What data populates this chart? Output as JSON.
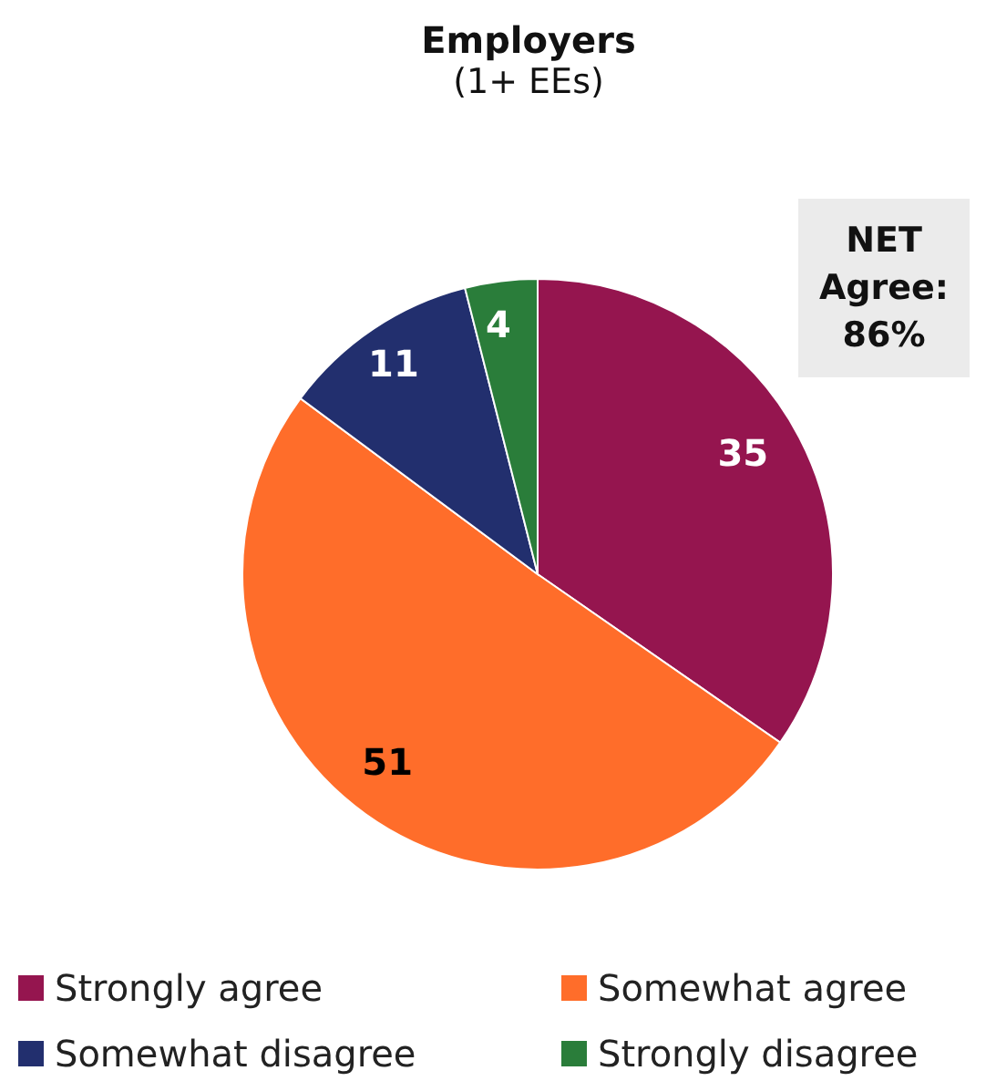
{
  "chart_data": {
    "type": "pie",
    "title": "Employers",
    "subtitle": "(1+ EEs)",
    "categories": [
      "Strongly agree",
      "Somewhat agree",
      "Somewhat disagree",
      "Strongly disagree"
    ],
    "values": [
      35,
      51,
      11,
      4
    ],
    "colors": [
      "#95154f",
      "#ff6d2a",
      "#222f6e",
      "#2a7d3a"
    ],
    "data_labels": true,
    "legend": "bottom",
    "annotations": [
      "NET Agree: 86%"
    ]
  }
}
